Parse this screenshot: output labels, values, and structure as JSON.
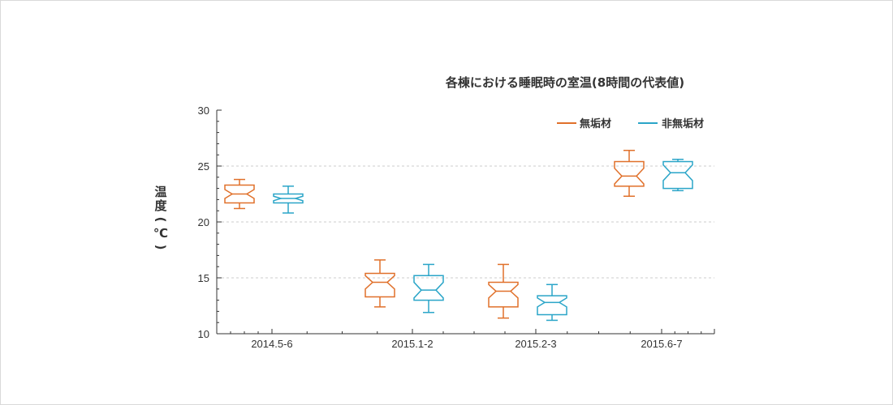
{
  "chart_data": {
    "type": "boxplot",
    "title": "各棟における睡眠時の室温(8時間の代表値)",
    "ylabel": "温度(℃)",
    "ylim": [
      10,
      30
    ],
    "yticks": [
      10,
      15,
      20,
      25,
      30
    ],
    "grid": "horizontal dashed at 15, 20, 25",
    "legend_position": "top-right",
    "categories": [
      "2014.5-6",
      "2015.1-2",
      "2015.2-3",
      "2015.6-7"
    ],
    "series": [
      {
        "name": "無垢材",
        "color": "#e0702a",
        "boxes": [
          {
            "min": 21.2,
            "q1": 21.7,
            "median": 22.5,
            "q3": 23.3,
            "max": 23.8,
            "notch_lo": 22.1,
            "notch_hi": 22.9
          },
          {
            "min": 12.4,
            "q1": 13.3,
            "median": 14.6,
            "q3": 15.4,
            "max": 16.6,
            "notch_lo": 14.0,
            "notch_hi": 15.2
          },
          {
            "min": 11.4,
            "q1": 12.4,
            "median": 13.8,
            "q3": 14.6,
            "max": 16.2,
            "notch_lo": 13.2,
            "notch_hi": 14.4
          },
          {
            "min": 22.3,
            "q1": 23.2,
            "median": 24.1,
            "q3": 25.4,
            "max": 26.4,
            "notch_lo": 23.4,
            "notch_hi": 24.8
          }
        ]
      },
      {
        "name": "非無垢材",
        "color": "#2aa5c8",
        "boxes": [
          {
            "min": 20.8,
            "q1": 21.7,
            "median": 22.1,
            "q3": 22.5,
            "max": 23.2,
            "notch_lo": 21.9,
            "notch_hi": 22.3
          },
          {
            "min": 11.9,
            "q1": 13.0,
            "median": 13.9,
            "q3": 15.2,
            "max": 16.2,
            "notch_lo": 13.2,
            "notch_hi": 14.6
          },
          {
            "min": 11.2,
            "q1": 11.7,
            "median": 12.8,
            "q3": 13.4,
            "max": 14.4,
            "notch_lo": 12.4,
            "notch_hi": 13.2
          },
          {
            "min": 22.8,
            "q1": 23.0,
            "median": 24.4,
            "q3": 25.4,
            "max": 25.6,
            "notch_lo": 23.7,
            "notch_hi": 25.1
          }
        ]
      }
    ]
  }
}
